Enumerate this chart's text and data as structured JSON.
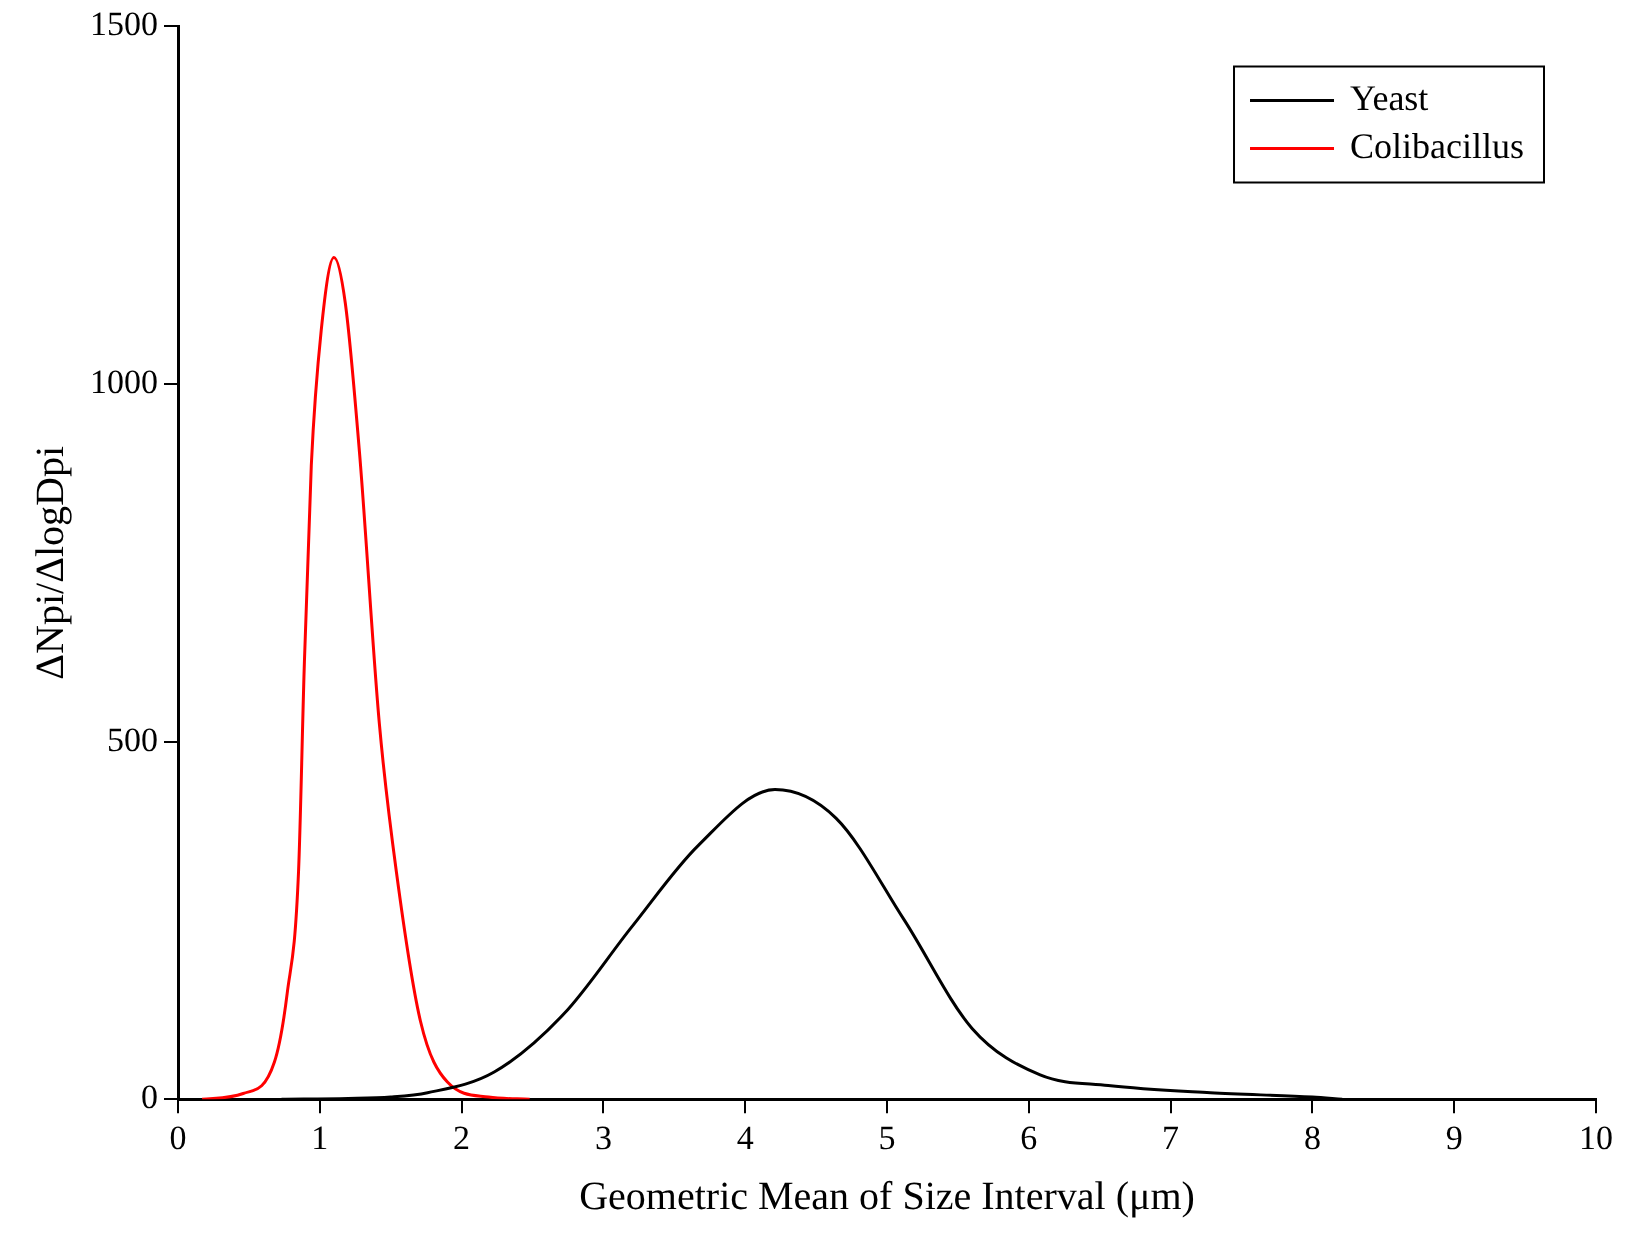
{
  "chart_data": {
    "type": "line",
    "xlabel": "Geometric Mean of Size Interval (μm)",
    "ylabel": "ΔNpi/ΔlogDpi",
    "xlim": [
      0,
      10
    ],
    "xticks": [
      0,
      1,
      2,
      3,
      4,
      5,
      6,
      7,
      8,
      9,
      10
    ],
    "ylim": [
      0,
      1500
    ],
    "yticks": [
      0,
      500,
      1000,
      1500
    ],
    "grid": false,
    "legend": "top right",
    "marker": "none",
    "line_style": "solid",
    "series": [
      {
        "name": "Yeast",
        "color": "#000000",
        "x": [
          0.73,
          1.2,
          1.5,
          1.76,
          2.23,
          2.72,
          3.2,
          3.67,
          4.21,
          4.64,
          5.12,
          5.6,
          6.08,
          6.56,
          7.28,
          8.0,
          8.21
        ],
        "values": [
          0,
          1,
          3,
          9,
          38,
          119,
          241,
          355,
          433,
          393,
          251,
          99,
          34,
          19,
          9,
          3,
          0
        ]
      },
      {
        "name": "Colibacillus",
        "color": "#ff0000",
        "x": [
          0.17,
          0.46,
          0.68,
          0.77,
          0.85,
          0.89,
          0.94,
          1.01,
          1.1,
          1.18,
          1.28,
          1.42,
          1.54,
          1.71,
          1.9,
          2.19,
          2.48
        ],
        "values": [
          0,
          8,
          52,
          148,
          318,
          602,
          886,
          1075,
          1177,
          1113,
          904,
          525,
          318,
          109,
          24,
          3,
          0
        ]
      }
    ]
  }
}
